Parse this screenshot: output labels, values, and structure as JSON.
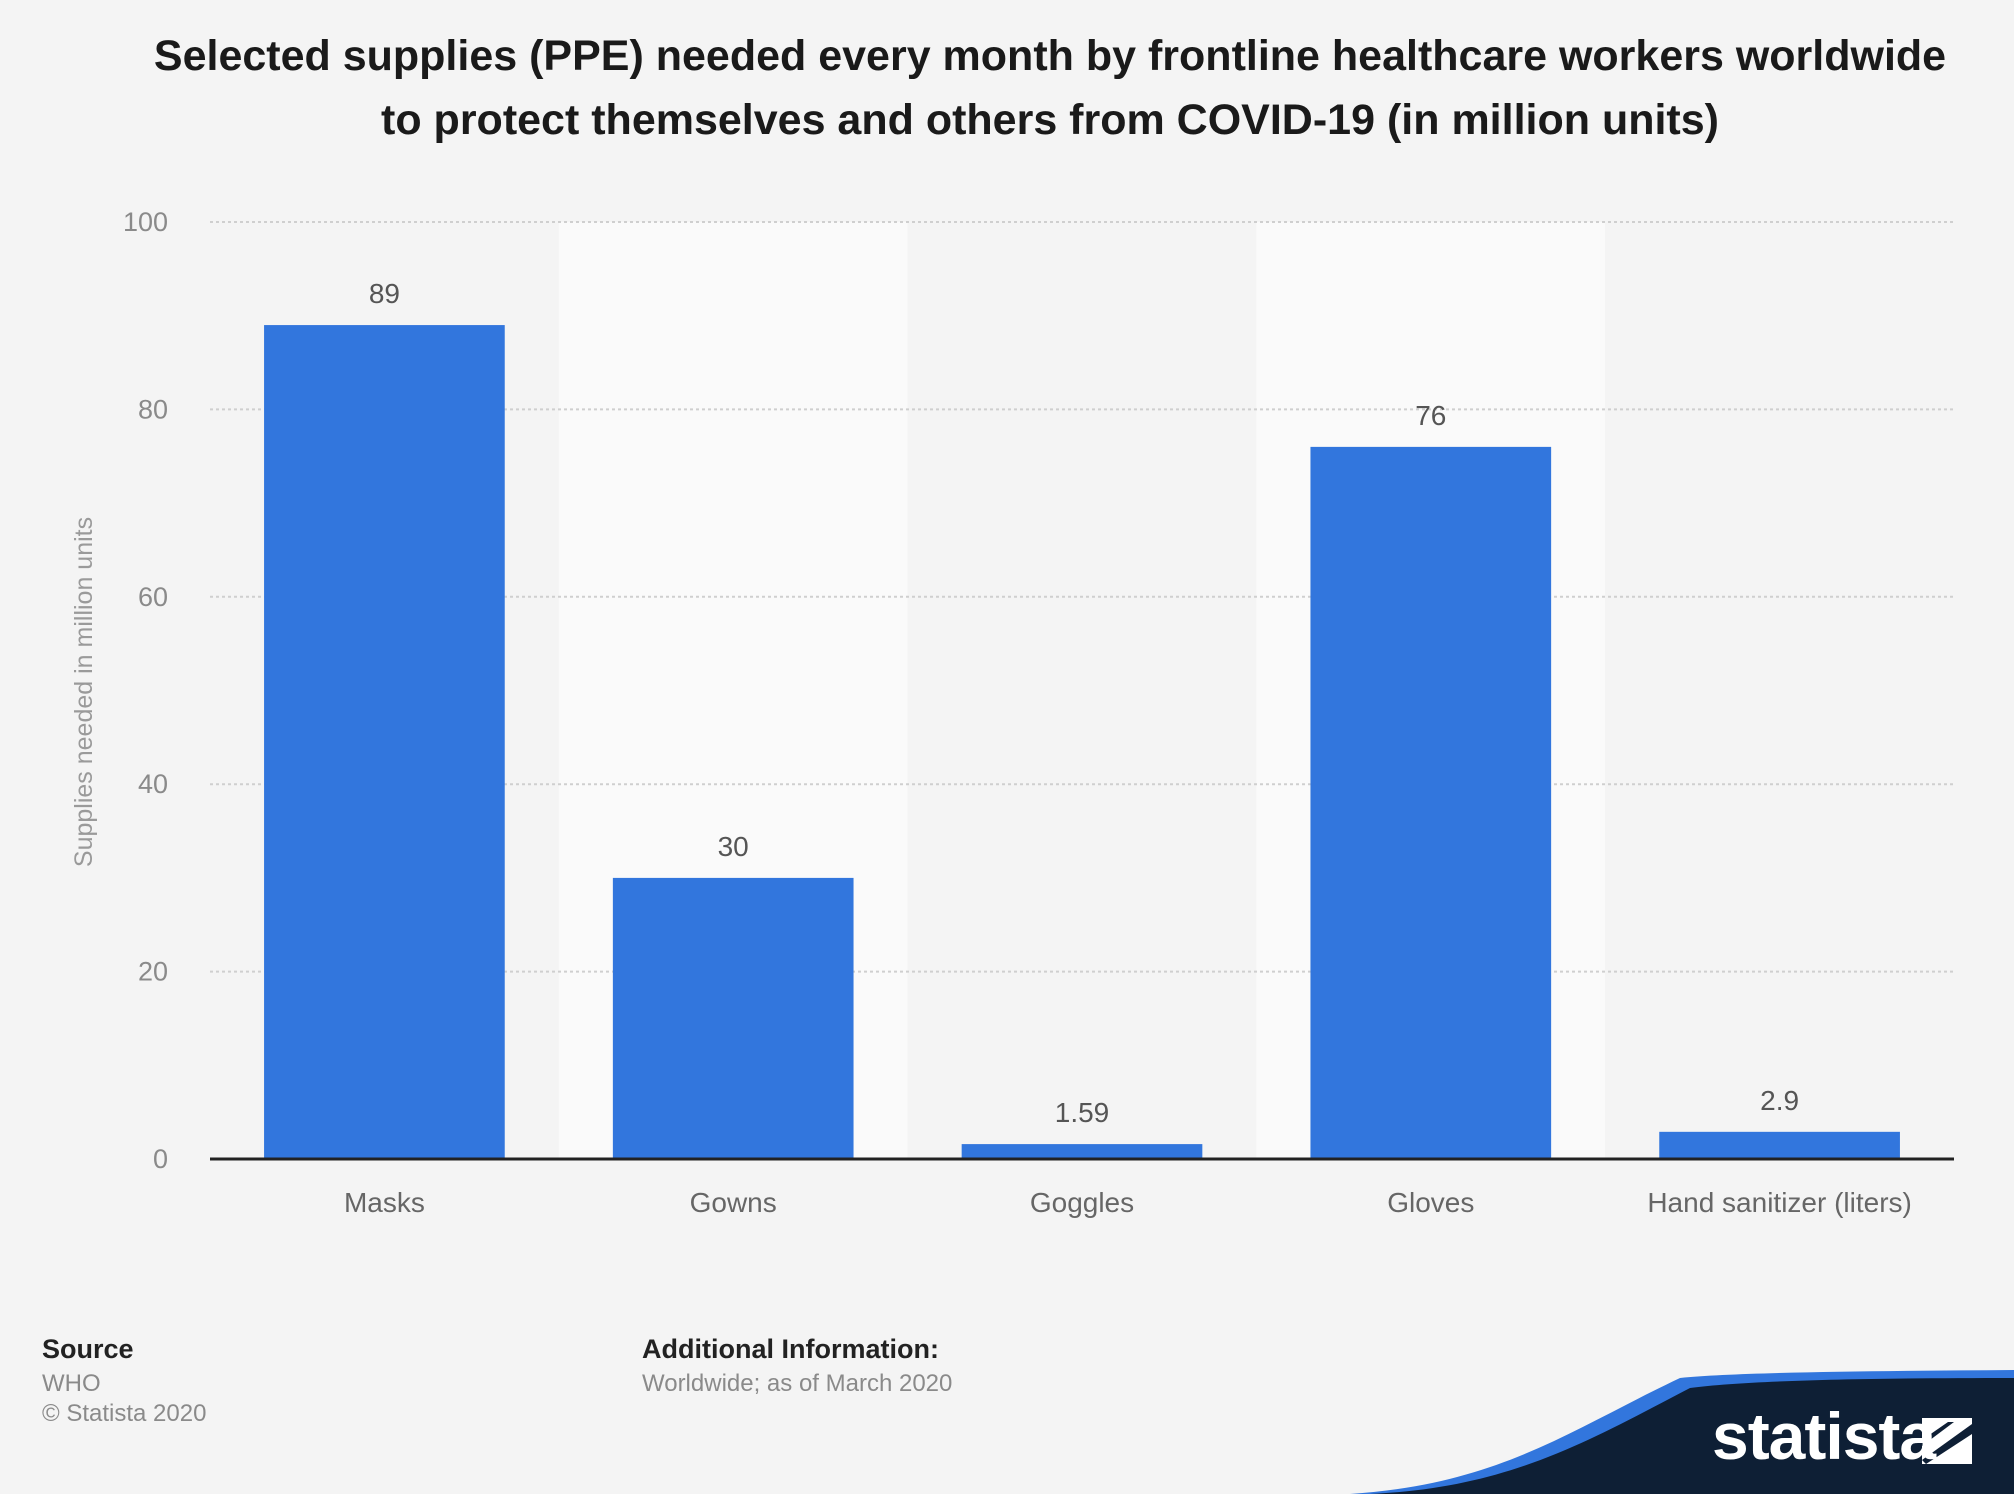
{
  "chart_data": {
    "type": "bar",
    "title": "Selected supplies (PPE) needed every month by frontline healthcare workers worldwide to protect themselves and others from COVID-19 (in million units)",
    "categories": [
      "Masks",
      "Gowns",
      "Goggles",
      "Gloves",
      "Hand sanitizer (liters)"
    ],
    "values": [
      89,
      30,
      1.59,
      76,
      2.9
    ],
    "value_labels": [
      "89",
      "30",
      "1.59",
      "76",
      "2.9"
    ],
    "xlabel": "",
    "ylabel": "Supplies needed in million units",
    "ylim": [
      0,
      100
    ],
    "yticks": [
      0,
      20,
      40,
      60,
      80,
      100
    ],
    "grid": true,
    "bar_color": "#3276dd"
  },
  "footer": {
    "source_heading": "Source",
    "source": "WHO",
    "copyright": "© Statista 2020",
    "additional_heading": "Additional Information:",
    "additional": "Worldwide; as of March 2020"
  },
  "brand": {
    "name": "statista",
    "logo_icon": "statista-logo-icon",
    "dark_color": "#0e1f35",
    "accent_color": "#3276dd"
  }
}
